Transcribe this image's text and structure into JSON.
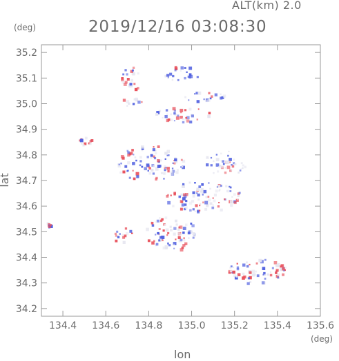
{
  "header": {
    "altitude_label": "ALT(km) 2.0",
    "timestamp": "2019/12/16 03:08:30",
    "unit_top": "(deg)",
    "unit_bottom": "(deg)"
  },
  "axes": {
    "xlabel": "lon",
    "ylabel": "lat",
    "x_ticks": [
      "134.4",
      "134.6",
      "134.8",
      "135.0",
      "135.2",
      "135.4",
      "135.6"
    ],
    "y_ticks": [
      "35.2",
      "35.1",
      "35.0",
      "34.9",
      "34.8",
      "34.7",
      "34.6",
      "34.5",
      "34.4",
      "34.3",
      "34.2"
    ]
  },
  "map_data": {
    "xlim": [
      134.3,
      135.6
    ],
    "ylim": [
      34.17,
      35.23
    ],
    "colors": {
      "positive": "#e8505b",
      "negative": "#5060e0",
      "neutral": "#e6e6f0",
      "axis": "#999999"
    },
    "clusters": [
      {
        "lon": 134.72,
        "lat": 35.1,
        "rx": 0.05,
        "ry": 0.05,
        "mix": "red"
      },
      {
        "lon": 134.95,
        "lat": 35.12,
        "rx": 0.08,
        "ry": 0.03,
        "mix": "blue"
      },
      {
        "lon": 135.05,
        "lat": 35.03,
        "rx": 0.1,
        "ry": 0.02,
        "mix": "blue"
      },
      {
        "lon": 134.95,
        "lat": 34.96,
        "rx": 0.14,
        "ry": 0.03,
        "mix": "mixed"
      },
      {
        "lon": 134.72,
        "lat": 35.01,
        "rx": 0.05,
        "ry": 0.02,
        "mix": "mixed"
      },
      {
        "lon": 134.5,
        "lat": 34.86,
        "rx": 0.03,
        "ry": 0.02,
        "mix": "red"
      },
      {
        "lon": 134.8,
        "lat": 34.77,
        "rx": 0.16,
        "ry": 0.07,
        "mix": "mixed"
      },
      {
        "lon": 135.15,
        "lat": 34.77,
        "rx": 0.1,
        "ry": 0.05,
        "mix": "mixed"
      },
      {
        "lon": 135.05,
        "lat": 34.64,
        "rx": 0.18,
        "ry": 0.06,
        "mix": "mixed"
      },
      {
        "lon": 134.9,
        "lat": 34.5,
        "rx": 0.12,
        "ry": 0.07,
        "mix": "mixed"
      },
      {
        "lon": 134.67,
        "lat": 34.49,
        "rx": 0.05,
        "ry": 0.03,
        "mix": "red"
      },
      {
        "lon": 134.33,
        "lat": 34.53,
        "rx": 0.01,
        "ry": 0.01,
        "mix": "blue"
      },
      {
        "lon": 135.3,
        "lat": 34.35,
        "rx": 0.13,
        "ry": 0.05,
        "mix": "mixed"
      },
      {
        "lon": 135.4,
        "lat": 34.36,
        "rx": 0.04,
        "ry": 0.015,
        "mix": "red"
      }
    ]
  }
}
